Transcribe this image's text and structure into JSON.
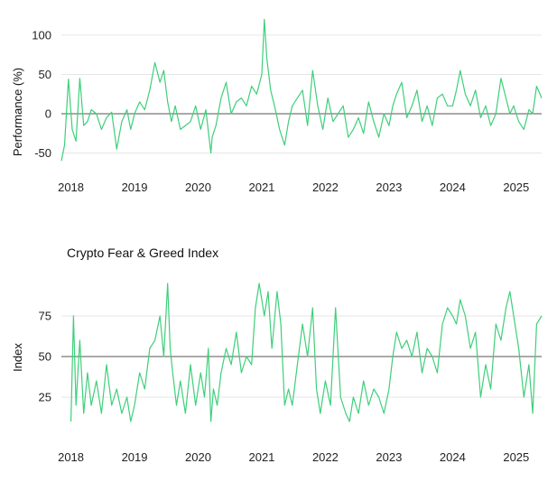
{
  "chart_data": [
    {
      "type": "line",
      "title": "",
      "xlabel": "",
      "ylabel": "Performance (%)",
      "ylim": [
        -62,
        124
      ],
      "xlim": [
        2017.85,
        2025.4
      ],
      "yticks": [
        -50,
        0,
        50,
        100
      ],
      "ytick_labels": [
        "-50",
        "0",
        "50",
        "100"
      ],
      "xticks": [
        2018,
        2019,
        2020,
        2021,
        2022,
        2023,
        2024,
        2025
      ],
      "xtick_labels": [
        "2018",
        "2019",
        "2020",
        "2021",
        "2022",
        "2023",
        "2024",
        "2025"
      ],
      "reference_line": 0,
      "grid": "horizontal",
      "colors": {
        "series": "#3ecf7a",
        "grid": "#e6e6e6",
        "reference": "#555555"
      },
      "series": [
        {
          "x": [
            2017.85,
            2017.9,
            2017.96,
            2018.02,
            2018.08,
            2018.14,
            2018.2,
            2018.26,
            2018.32,
            2018.4,
            2018.48,
            2018.56,
            2018.64,
            2018.72,
            2018.8,
            2018.88,
            2018.94,
            2019.0,
            2019.08,
            2019.16,
            2019.24,
            2019.32,
            2019.4,
            2019.46,
            2019.52,
            2019.58,
            2019.64,
            2019.72,
            2019.8,
            2019.88,
            2019.96,
            2020.04,
            2020.12,
            2020.2,
            2020.22,
            2020.28,
            2020.36,
            2020.44,
            2020.52,
            2020.6,
            2020.68,
            2020.76,
            2020.84,
            2020.92,
            2021.0,
            2021.04,
            2021.08,
            2021.14,
            2021.2,
            2021.28,
            2021.36,
            2021.42,
            2021.48,
            2021.56,
            2021.64,
            2021.72,
            2021.8,
            2021.88,
            2021.96,
            2022.04,
            2022.12,
            2022.2,
            2022.28,
            2022.36,
            2022.44,
            2022.52,
            2022.6,
            2022.68,
            2022.76,
            2022.84,
            2022.92,
            2023.0,
            2023.06,
            2023.12,
            2023.2,
            2023.28,
            2023.36,
            2023.44,
            2023.52,
            2023.6,
            2023.68,
            2023.76,
            2023.84,
            2023.92,
            2024.0,
            2024.06,
            2024.12,
            2024.2,
            2024.28,
            2024.36,
            2024.44,
            2024.52,
            2024.6,
            2024.68,
            2024.76,
            2024.84,
            2024.9,
            2024.96,
            2025.04,
            2025.12,
            2025.2,
            2025.26,
            2025.32,
            2025.4
          ],
          "y": [
            -60,
            -40,
            44,
            -20,
            -35,
            45,
            -15,
            -10,
            5,
            0,
            -20,
            -5,
            2,
            -45,
            -10,
            5,
            -20,
            0,
            15,
            5,
            30,
            65,
            40,
            55,
            15,
            -10,
            10,
            -20,
            -15,
            -10,
            10,
            -20,
            5,
            -50,
            -30,
            -15,
            20,
            40,
            0,
            15,
            20,
            10,
            35,
            25,
            50,
            120,
            70,
            30,
            10,
            -20,
            -40,
            -10,
            10,
            20,
            30,
            -15,
            55,
            10,
            -20,
            20,
            -10,
            0,
            10,
            -30,
            -20,
            -5,
            -25,
            15,
            -10,
            -30,
            0,
            -15,
            10,
            25,
            40,
            -5,
            10,
            30,
            -10,
            10,
            -15,
            20,
            25,
            10,
            10,
            30,
            55,
            25,
            10,
            30,
            -5,
            10,
            -15,
            0,
            45,
            20,
            0,
            10,
            -10,
            -20,
            5,
            0,
            35,
            20
          ]
        }
      ]
    },
    {
      "type": "line",
      "title": "Crypto Fear & Greed Index",
      "xlabel": "",
      "ylabel": "Index",
      "ylim": [
        0,
        100
      ],
      "xlim": [
        2017.85,
        2025.4
      ],
      "yticks": [
        25,
        50,
        75
      ],
      "ytick_labels": [
        "25",
        "50",
        "75"
      ],
      "xticks": [
        2018,
        2019,
        2020,
        2021,
        2022,
        2023,
        2024,
        2025
      ],
      "xtick_labels": [
        "2018",
        "2019",
        "2020",
        "2021",
        "2022",
        "2023",
        "2024",
        "2025"
      ],
      "reference_line": 50,
      "grid": "horizontal",
      "colors": {
        "series": "#3ecf7a",
        "grid": "#e6e6e6",
        "reference": "#555555"
      },
      "series": [
        {
          "x": [
            2018.0,
            2018.04,
            2018.08,
            2018.14,
            2018.2,
            2018.26,
            2018.32,
            2018.4,
            2018.48,
            2018.56,
            2018.64,
            2018.72,
            2018.8,
            2018.88,
            2018.94,
            2019.0,
            2019.08,
            2019.16,
            2019.24,
            2019.32,
            2019.4,
            2019.46,
            2019.52,
            2019.56,
            2019.6,
            2019.66,
            2019.72,
            2019.8,
            2019.88,
            2019.96,
            2020.04,
            2020.1,
            2020.16,
            2020.2,
            2020.24,
            2020.3,
            2020.36,
            2020.44,
            2020.52,
            2020.6,
            2020.68,
            2020.76,
            2020.84,
            2020.9,
            2020.96,
            2021.04,
            2021.1,
            2021.16,
            2021.24,
            2021.3,
            2021.36,
            2021.42,
            2021.48,
            2021.56,
            2021.64,
            2021.72,
            2021.8,
            2021.86,
            2021.92,
            2022.0,
            2022.08,
            2022.16,
            2022.24,
            2022.32,
            2022.38,
            2022.44,
            2022.52,
            2022.6,
            2022.68,
            2022.76,
            2022.84,
            2022.92,
            2023.0,
            2023.06,
            2023.12,
            2023.2,
            2023.28,
            2023.36,
            2023.44,
            2023.52,
            2023.6,
            2023.68,
            2023.76,
            2023.84,
            2023.92,
            2024.0,
            2024.06,
            2024.12,
            2024.2,
            2024.28,
            2024.36,
            2024.44,
            2024.52,
            2024.6,
            2024.68,
            2024.76,
            2024.84,
            2024.9,
            2024.96,
            2025.04,
            2025.12,
            2025.2,
            2025.26,
            2025.32,
            2025.4
          ],
          "y": [
            10,
            75,
            20,
            60,
            15,
            40,
            20,
            35,
            15,
            45,
            20,
            30,
            15,
            25,
            10,
            20,
            40,
            30,
            55,
            60,
            75,
            50,
            95,
            55,
            40,
            20,
            35,
            15,
            45,
            20,
            40,
            25,
            55,
            10,
            30,
            20,
            40,
            55,
            45,
            65,
            40,
            50,
            45,
            80,
            95,
            75,
            90,
            55,
            90,
            70,
            20,
            30,
            20,
            45,
            70,
            50,
            80,
            30,
            15,
            35,
            20,
            80,
            25,
            15,
            10,
            25,
            15,
            35,
            20,
            30,
            25,
            15,
            30,
            50,
            65,
            55,
            60,
            50,
            65,
            40,
            55,
            50,
            40,
            70,
            80,
            75,
            70,
            85,
            75,
            55,
            65,
            25,
            45,
            30,
            70,
            60,
            80,
            90,
            75,
            55,
            25,
            45,
            15,
            70,
            75
          ]
        }
      ]
    }
  ]
}
